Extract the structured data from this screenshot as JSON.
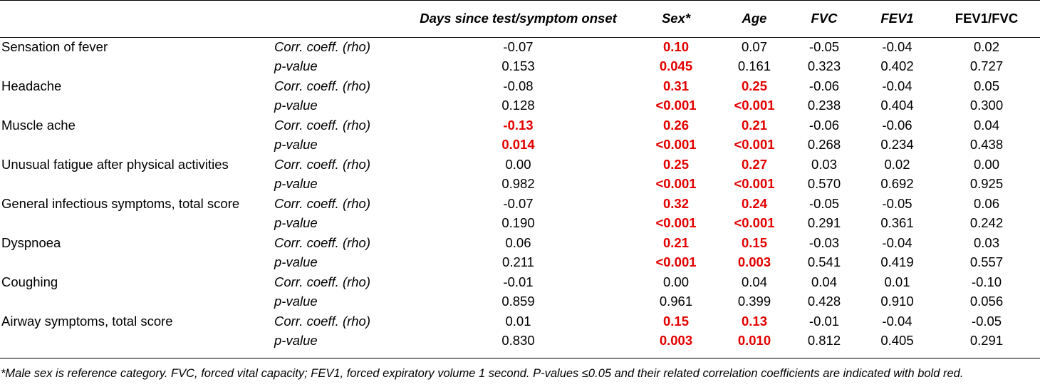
{
  "header": {
    "columns": [
      "Days since test/symptom onset",
      "Sex*",
      "Age",
      "FVC",
      "FEV1",
      "FEV1/FVC"
    ]
  },
  "rows": [
    {
      "symptom": "Sensation of fever",
      "rho": {
        "label": "Corr. coeff. (rho)",
        "values": [
          "-0.07",
          "0.10",
          "0.07",
          "-0.05",
          "-0.04",
          "0.02"
        ],
        "sig": [
          false,
          true,
          false,
          false,
          false,
          false
        ]
      },
      "p": {
        "label": "p-value",
        "values": [
          "0.153",
          "0.045",
          "0.161",
          "0.323",
          "0.402",
          "0.727"
        ],
        "sig": [
          false,
          true,
          false,
          false,
          false,
          false
        ]
      }
    },
    {
      "symptom": "Headache",
      "rho": {
        "label": "Corr. coeff. (rho)",
        "values": [
          "-0.08",
          "0.31",
          "0.25",
          "-0.06",
          "-0.04",
          "0.05"
        ],
        "sig": [
          false,
          true,
          true,
          false,
          false,
          false
        ]
      },
      "p": {
        "label": "p-value",
        "values": [
          "0.128",
          "<0.001",
          "<0.001",
          "0.238",
          "0.404",
          "0.300"
        ],
        "sig": [
          false,
          true,
          true,
          false,
          false,
          false
        ]
      }
    },
    {
      "symptom": "Muscle ache",
      "rho": {
        "label": "Corr. coeff. (rho)",
        "values": [
          "-0.13",
          "0.26",
          "0.21",
          "-0.06",
          "-0.06",
          "0.04"
        ],
        "sig": [
          true,
          true,
          true,
          false,
          false,
          false
        ]
      },
      "p": {
        "label": "p-value",
        "values": [
          "0.014",
          "<0.001",
          "<0.001",
          "0.268",
          "0.234",
          "0.438"
        ],
        "sig": [
          true,
          true,
          true,
          false,
          false,
          false
        ]
      }
    },
    {
      "symptom": "Unusual fatigue after physical activities",
      "rho": {
        "label": "Corr. coeff. (rho)",
        "values": [
          "0.00",
          "0.25",
          "0.27",
          "0.03",
          "0.02",
          "0.00"
        ],
        "sig": [
          false,
          true,
          true,
          false,
          false,
          false
        ]
      },
      "p": {
        "label": "p-value",
        "values": [
          "0.982",
          "<0.001",
          "<0.001",
          "0.570",
          "0.692",
          "0.925"
        ],
        "sig": [
          false,
          true,
          true,
          false,
          false,
          false
        ]
      }
    },
    {
      "symptom": "General infectious symptoms, total score",
      "rho": {
        "label": "Corr. coeff. (rho)",
        "values": [
          "-0.07",
          "0.32",
          "0.24",
          "-0.05",
          "-0.05",
          "0.06"
        ],
        "sig": [
          false,
          true,
          true,
          false,
          false,
          false
        ]
      },
      "p": {
        "label": "p-value",
        "values": [
          "0.190",
          "<0.001",
          "<0.001",
          "0.291",
          "0.361",
          "0.242"
        ],
        "sig": [
          false,
          true,
          true,
          false,
          false,
          false
        ]
      }
    },
    {
      "symptom": "Dyspnoea",
      "rho": {
        "label": "Corr. coeff. (rho)",
        "values": [
          "0.06",
          "0.21",
          "0.15",
          "-0.03",
          "-0.04",
          "0.03"
        ],
        "sig": [
          false,
          true,
          true,
          false,
          false,
          false
        ]
      },
      "p": {
        "label": "p-value",
        "values": [
          "0.211",
          "<0.001",
          "0.003",
          "0.541",
          "0.419",
          "0.557"
        ],
        "sig": [
          false,
          true,
          true,
          false,
          false,
          false
        ]
      }
    },
    {
      "symptom": "Coughing",
      "rho": {
        "label": "Corr. coeff. (rho)",
        "values": [
          "-0.01",
          "0.00",
          "0.04",
          "0.04",
          "0.01",
          "-0.10"
        ],
        "sig": [
          false,
          false,
          false,
          false,
          false,
          false
        ]
      },
      "p": {
        "label": "p-value",
        "values": [
          "0.859",
          "0.961",
          "0.399",
          "0.428",
          "0.910",
          "0.056"
        ],
        "sig": [
          false,
          false,
          false,
          false,
          false,
          false
        ]
      }
    },
    {
      "symptom": "Airway symptoms, total score",
      "rho": {
        "label": "Corr. coeff. (rho)",
        "values": [
          "0.01",
          "0.15",
          "0.13",
          "-0.01",
          "-0.04",
          "-0.05"
        ],
        "sig": [
          false,
          true,
          true,
          false,
          false,
          false
        ]
      },
      "p": {
        "label": "p-value",
        "values": [
          "0.830",
          "0.003",
          "0.010",
          "0.812",
          "0.405",
          "0.291"
        ],
        "sig": [
          false,
          true,
          true,
          false,
          false,
          false
        ]
      }
    }
  ],
  "footnote": "*Male sex is reference category. FVC, forced vital capacity; FEV1, forced expiratory volume 1 second. P-values ≤0.05 and their related correlation coefficients are indicated with bold red.",
  "colors": {
    "significant": "#e30000",
    "text": "#000000"
  }
}
